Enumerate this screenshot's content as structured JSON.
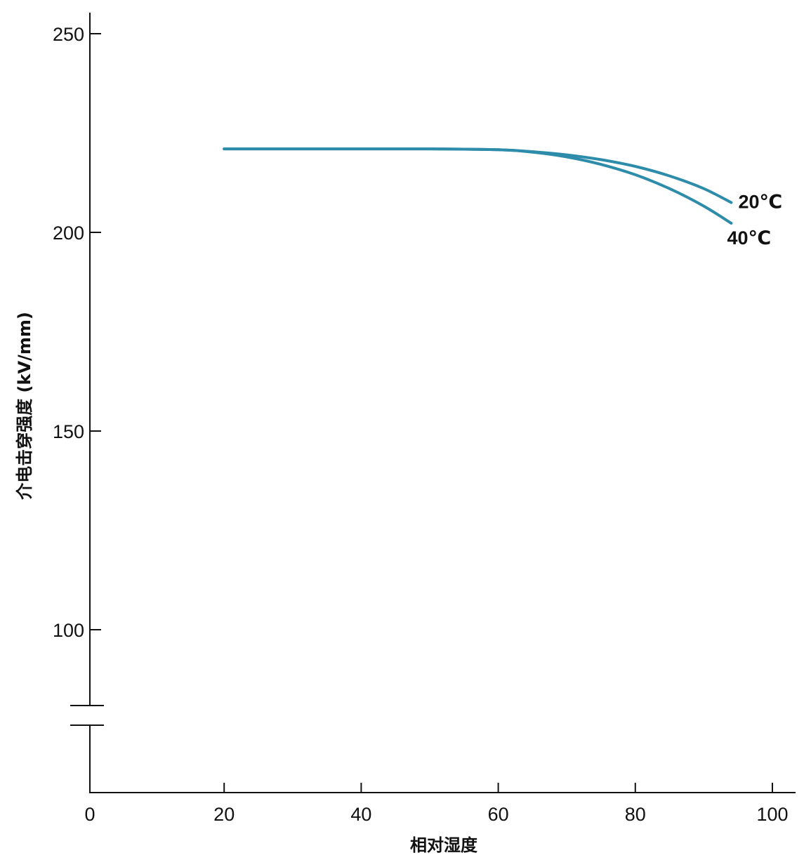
{
  "chart_data": {
    "type": "line",
    "xlabel": "相对湿度",
    "ylabel": "介电击穿强度 (kV/mm)",
    "xlim": [
      0,
      100
    ],
    "ylim_upper": [
      100,
      250
    ],
    "y_axis_break": true,
    "x_ticks": [
      "0",
      "20",
      "40",
      "60",
      "80",
      "100"
    ],
    "y_ticks": [
      "100",
      "150",
      "200",
      "250"
    ],
    "line_color": "#2e8cab",
    "grid": false,
    "series": [
      {
        "name": "20℃",
        "x": [
          20,
          30,
          40,
          50,
          60,
          65,
          70,
          75,
          80,
          85,
          90,
          94
        ],
        "y": [
          221,
          221,
          221,
          221,
          220.8,
          220.3,
          219.5,
          218.3,
          216.6,
          214.2,
          211,
          207.5
        ]
      },
      {
        "name": "40℃",
        "x": [
          20,
          30,
          40,
          50,
          60,
          65,
          70,
          75,
          80,
          85,
          90,
          94
        ],
        "y": [
          221,
          221,
          221,
          221,
          220.8,
          220.2,
          219,
          217.1,
          214.5,
          211,
          206.6,
          202.3
        ]
      }
    ]
  }
}
